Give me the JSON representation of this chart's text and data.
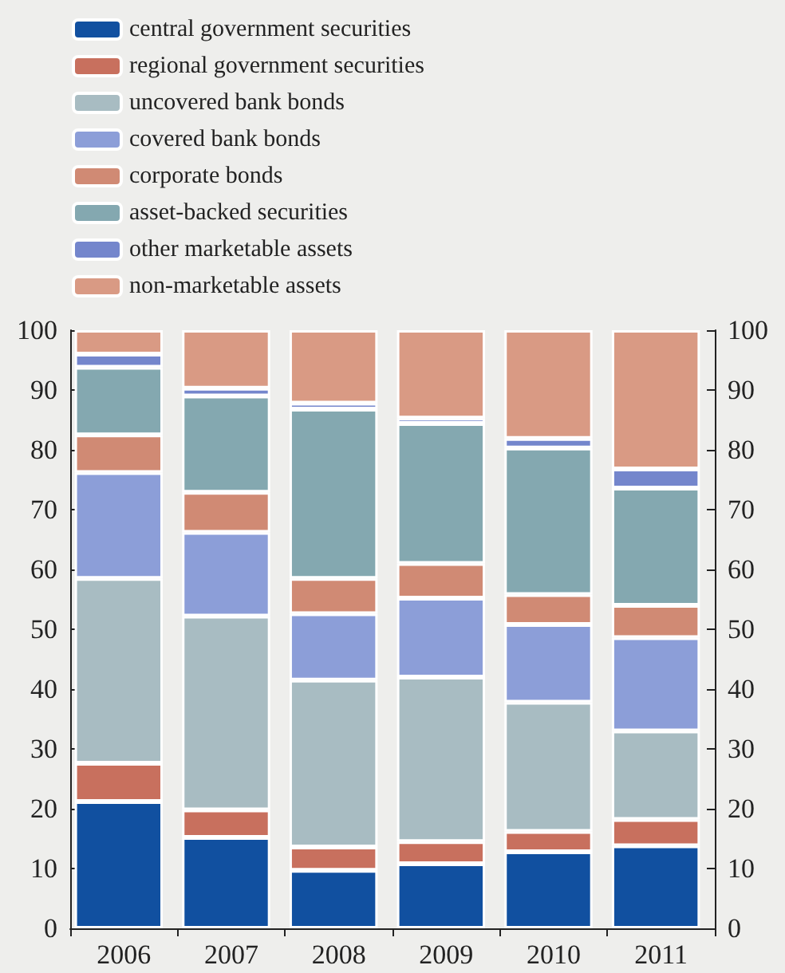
{
  "chart_data": {
    "type": "bar",
    "stacked": true,
    "categories": [
      "2006",
      "2007",
      "2008",
      "2009",
      "2010",
      "2011"
    ],
    "series": [
      {
        "name": "central government securities",
        "color": "#1150a0",
        "values": [
          21.2,
          15.2,
          9.7,
          10.8,
          12.8,
          13.8
        ]
      },
      {
        "name": "regional government securities",
        "color": "#c8705e",
        "values": [
          6.4,
          4.6,
          3.9,
          3.7,
          3.4,
          4.4
        ]
      },
      {
        "name": "uncovered bank bonds",
        "color": "#a8bcc2",
        "values": [
          30.9,
          32.4,
          27.9,
          27.5,
          21.6,
          14.8
        ]
      },
      {
        "name": "covered bank bonds",
        "color": "#8c9ed8",
        "values": [
          17.7,
          14.0,
          11.1,
          13.2,
          13.0,
          15.6
        ]
      },
      {
        "name": "corporate bonds",
        "color": "#d08a74",
        "values": [
          6.3,
          6.7,
          5.9,
          5.8,
          5.0,
          5.4
        ]
      },
      {
        "name": "asset-backed securities",
        "color": "#84a8b0",
        "values": [
          11.3,
          16.1,
          28.3,
          23.4,
          24.5,
          19.6
        ]
      },
      {
        "name": "other marketable assets",
        "color": "#7486cc",
        "values": [
          2.2,
          1.3,
          1.0,
          0.9,
          1.6,
          3.2
        ]
      },
      {
        "name": "non-marketable assets",
        "color": "#d99a84",
        "values": [
          4.0,
          9.7,
          12.2,
          14.7,
          18.1,
          23.2
        ]
      }
    ],
    "ylim": [
      0,
      100
    ],
    "yticks": [
      0,
      10,
      20,
      30,
      40,
      50,
      60,
      70,
      80,
      90,
      100
    ],
    "y2lim": [
      0,
      100
    ],
    "y2ticks": [
      0,
      10,
      20,
      30,
      40,
      50,
      60,
      70,
      80,
      90,
      100
    ],
    "grid": false,
    "legend": "top left"
  }
}
